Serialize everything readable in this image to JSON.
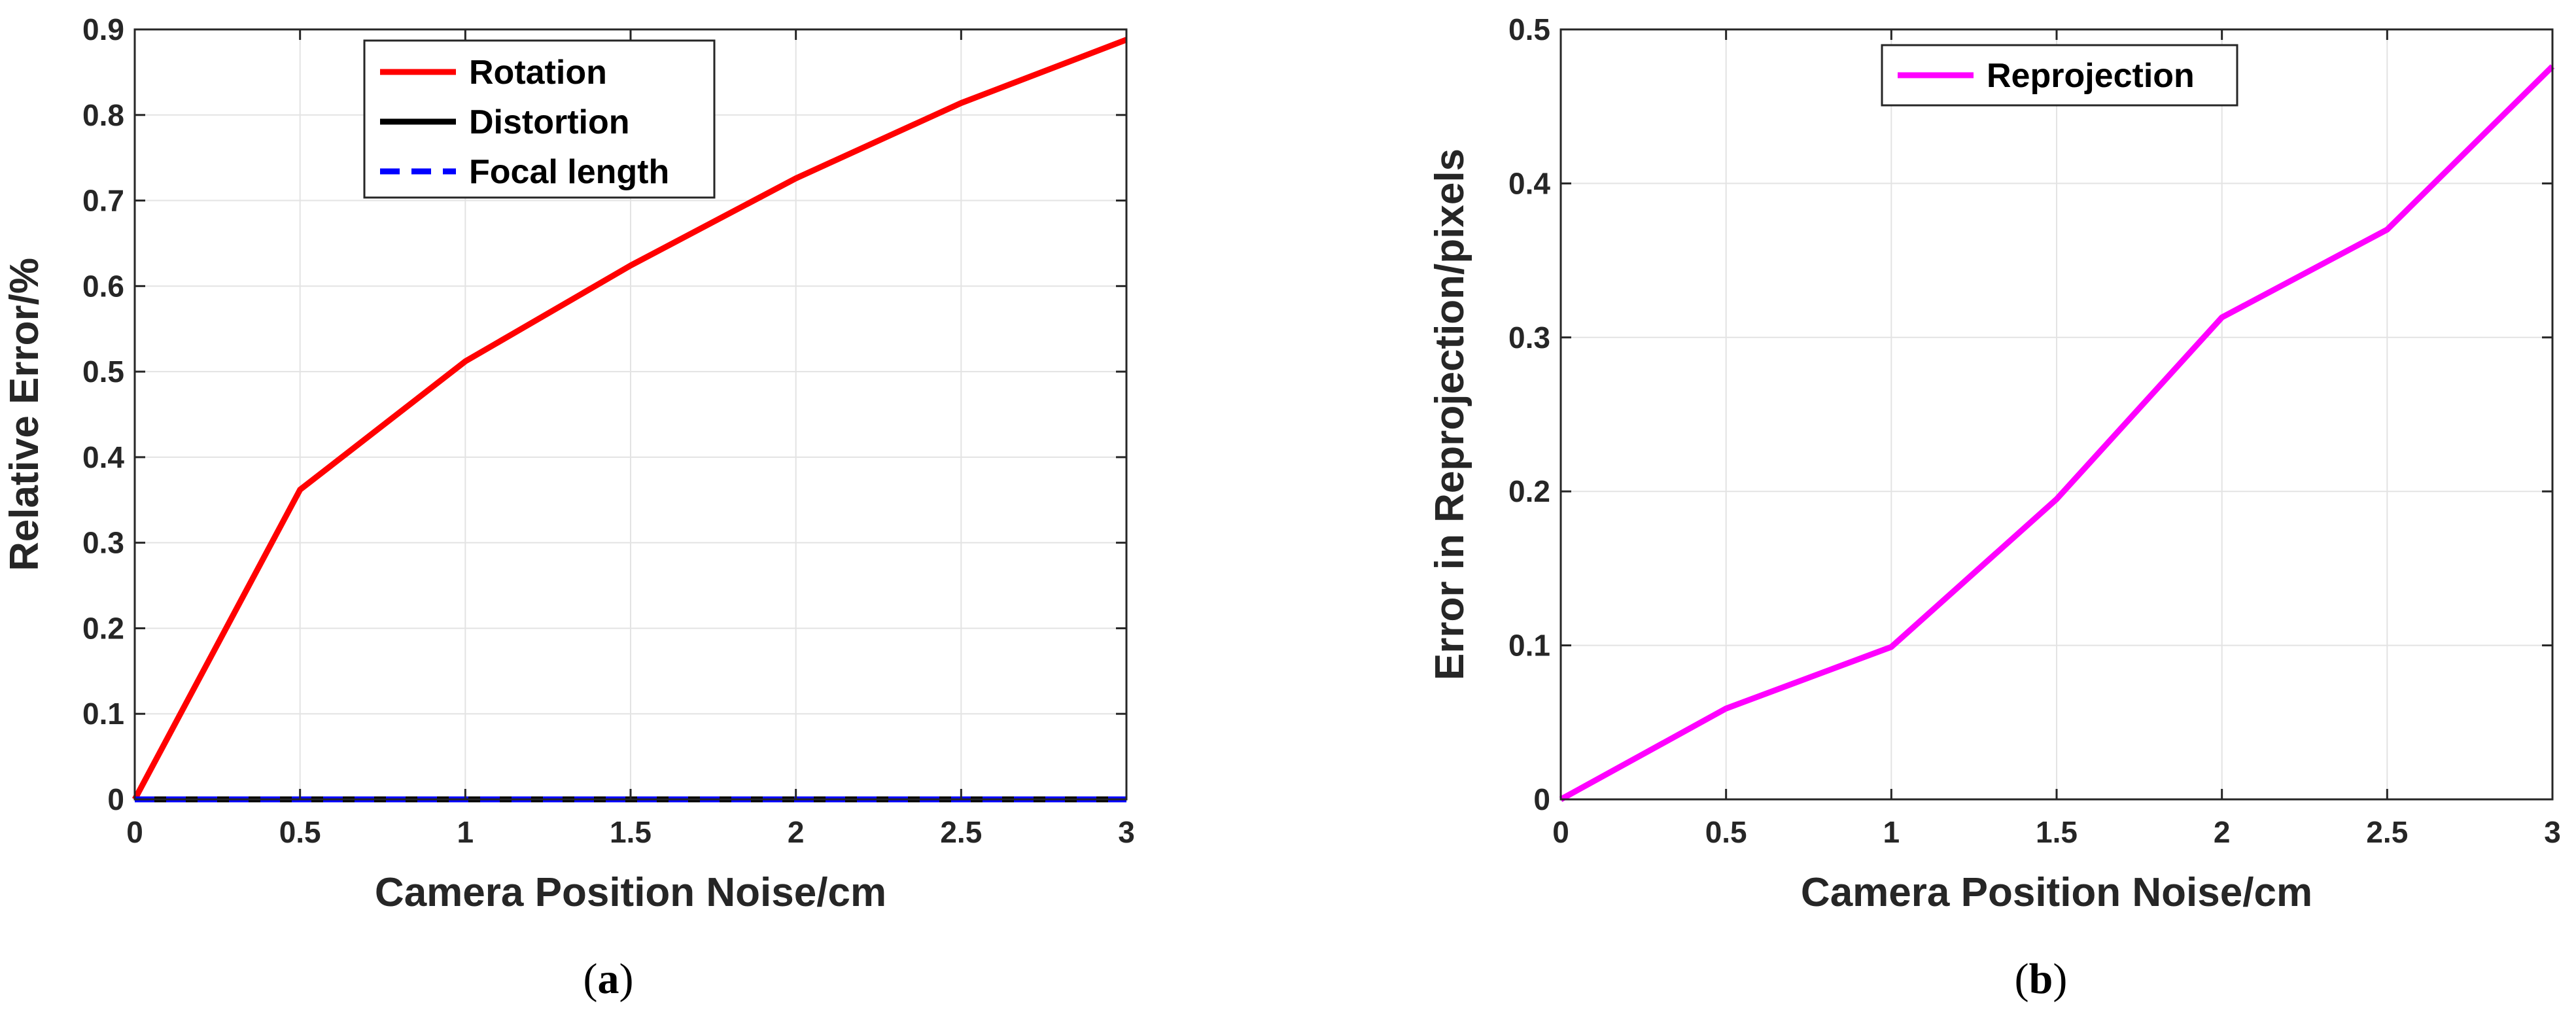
{
  "chart_data": [
    {
      "type": "line",
      "caption_letter": "a",
      "xlabel": "Camera Position Noise/cm",
      "ylabel": "Relative Error/%",
      "xlim": [
        0,
        3
      ],
      "ylim": [
        0,
        0.9
      ],
      "x_ticks": [
        "0",
        "0.5",
        "1",
        "1.5",
        "2",
        "2.5",
        "3"
      ],
      "y_ticks": [
        "0",
        "0.1",
        "0.2",
        "0.3",
        "0.4",
        "0.5",
        "0.6",
        "0.7",
        "0.8",
        "0.9"
      ],
      "grid": true,
      "legend_position": "top-center",
      "x": [
        0,
        0.5,
        1,
        1.5,
        2,
        2.5,
        3
      ],
      "series": [
        {
          "name": "Rotation",
          "color": "#ff0000",
          "dash": "solid",
          "values": [
            0,
            0.362,
            0.512,
            0.624,
            0.726,
            0.814,
            0.888
          ]
        },
        {
          "name": "Distortion",
          "color": "#000000",
          "dash": "solid",
          "values": [
            0,
            0,
            0,
            0,
            0,
            0,
            0
          ]
        },
        {
          "name": "Focal length",
          "color": "#0000ff",
          "dash": "dashed",
          "values": [
            0,
            0,
            0,
            0,
            0,
            0,
            0
          ]
        }
      ]
    },
    {
      "type": "line",
      "caption_letter": "b",
      "xlabel": "Camera Position Noise/cm",
      "ylabel": "Error in Reprojection/pixels",
      "xlim": [
        0,
        3
      ],
      "ylim": [
        0,
        0.5
      ],
      "x_ticks": [
        "0",
        "0.5",
        "1",
        "1.5",
        "2",
        "2.5",
        "3"
      ],
      "y_ticks": [
        "0",
        "0.1",
        "0.2",
        "0.3",
        "0.4",
        "0.5"
      ],
      "grid": true,
      "legend_position": "top-center",
      "x": [
        0,
        0.5,
        1,
        1.5,
        2,
        2.5,
        3
      ],
      "series": [
        {
          "name": "Reprojection",
          "color": "#ff00ff",
          "dash": "solid",
          "values": [
            0,
            0.059,
            0.099,
            0.195,
            0.313,
            0.37,
            0.476
          ]
        }
      ]
    }
  ]
}
